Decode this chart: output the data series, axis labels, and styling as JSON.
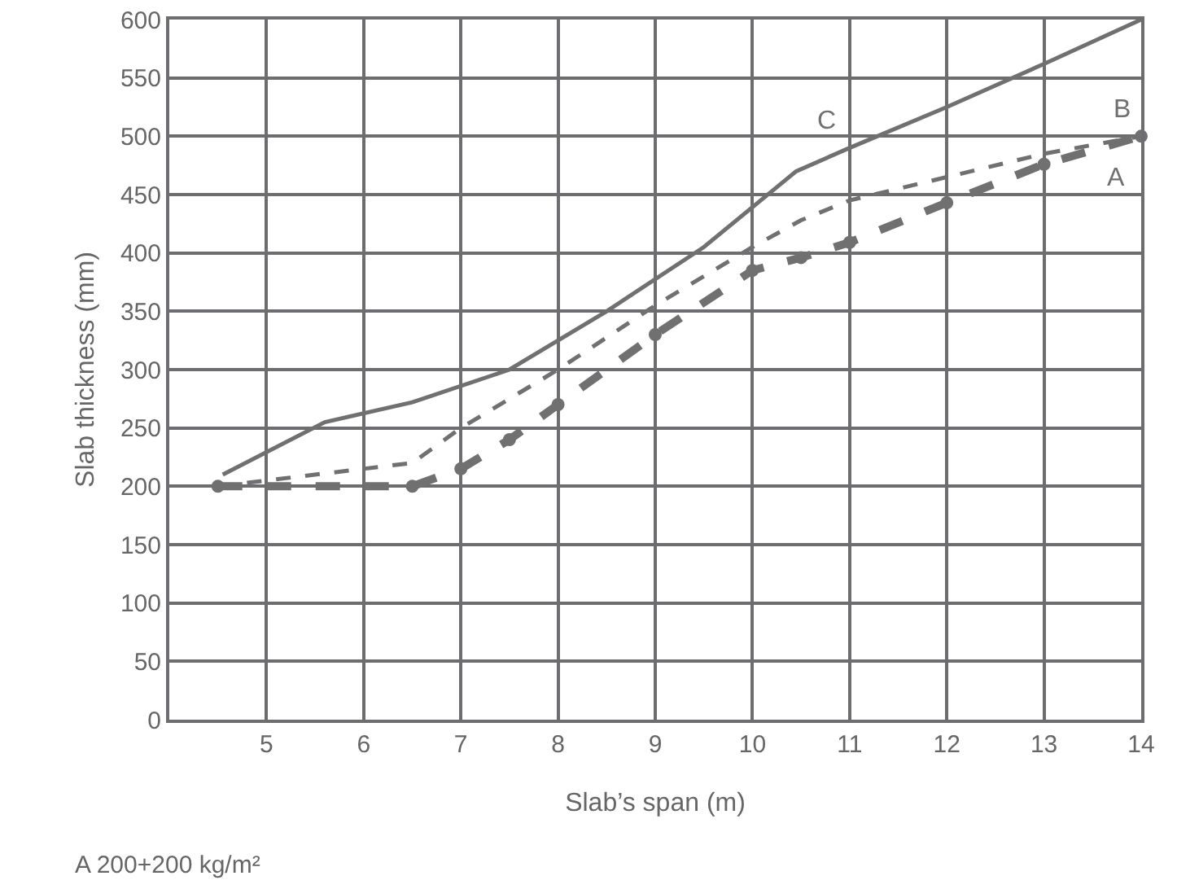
{
  "chart_data": {
    "type": "line",
    "xlabel": "Slab’s span (m)",
    "ylabel": "Slab thickness (mm)",
    "xlim": [
      4,
      14
    ],
    "xticks": [
      5,
      6,
      7,
      8,
      9,
      10,
      11,
      12,
      13,
      14
    ],
    "ylim": [
      0,
      600
    ],
    "yticks": [
      0,
      50,
      100,
      150,
      200,
      250,
      300,
      350,
      400,
      450,
      500,
      550,
      600
    ],
    "grid": true,
    "legend": false,
    "series": [
      {
        "name": "C",
        "color": "#707070",
        "line_style": "solid",
        "marker": "none",
        "x": [
          4.55,
          5.6,
          6.5,
          7.5,
          8.5,
          9.5,
          10.45,
          11,
          12,
          13,
          14
        ],
        "values": [
          210,
          255,
          272,
          300,
          350,
          405,
          470,
          490,
          525,
          562,
          600
        ]
      },
      {
        "name": "B",
        "color": "#707070",
        "line_style": "dashed",
        "marker": "none",
        "x": [
          4.5,
          6.5,
          7,
          8,
          9,
          10,
          10.5,
          11,
          12,
          13,
          14
        ],
        "values": [
          200,
          220,
          250,
          300,
          355,
          405,
          428,
          445,
          465,
          485,
          500
        ]
      },
      {
        "name": "A",
        "color": "#707070",
        "line_style": "dashed",
        "marker": "circle",
        "x": [
          4.5,
          6.5,
          7,
          7.5,
          8,
          9,
          10,
          10.5,
          11,
          12,
          13,
          14
        ],
        "values": [
          200,
          200,
          215,
          240,
          270,
          330,
          385,
          396,
          409,
          443,
          476,
          500
        ]
      }
    ],
    "annotations": [
      "A 200+200 kg/m²"
    ]
  }
}
